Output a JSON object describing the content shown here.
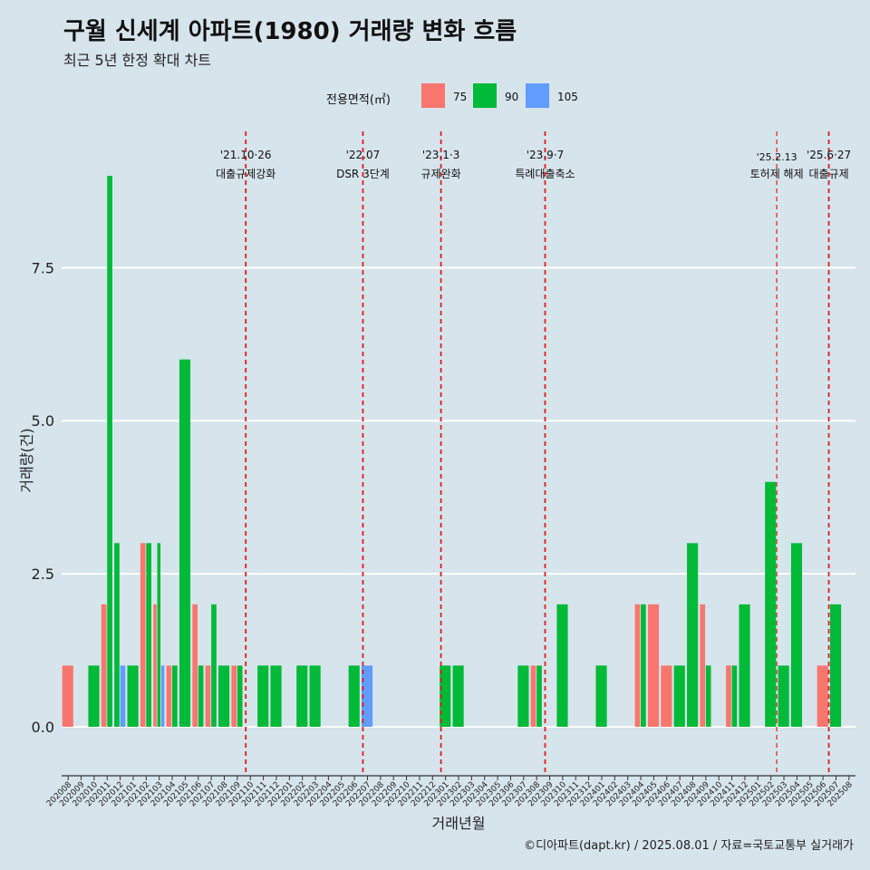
{
  "title": "구월 신세계 아파트(1980) 거래량 변화 흐름",
  "subtitle": "최근 5년 한정 확대 차트",
  "footer": "©디아파트(dapt.kr) / 2025.08.01 / 자료=국토교통부 실거래가",
  "legend": {
    "title": "전용면적(㎡)",
    "items": [
      {
        "label": "75",
        "color": "#F8766D"
      },
      {
        "label": "90",
        "color": "#00BA38"
      },
      {
        "label": "105",
        "color": "#619CFF"
      }
    ]
  },
  "chart_data": {
    "type": "bar",
    "xlabel": "거래년월",
    "ylabel": "거래량(건)",
    "ylim": [
      -0.8,
      9.8
    ],
    "yticks": [
      0.0,
      2.5,
      5.0,
      7.5
    ],
    "ytick_labels": [
      "0.0",
      "2.5",
      "5.0",
      "7.5"
    ],
    "grid": true,
    "legend_position": "top",
    "categories": [
      "202008",
      "202009",
      "202010",
      "202011",
      "202012",
      "202101",
      "202102",
      "202103",
      "202104",
      "202105",
      "202106",
      "202107",
      "202108",
      "202109",
      "202110",
      "202111",
      "202112",
      "202201",
      "202202",
      "202203",
      "202204",
      "202205",
      "202206",
      "202207",
      "202208",
      "202209",
      "202210",
      "202211",
      "202212",
      "202301",
      "202302",
      "202303",
      "202304",
      "202305",
      "202306",
      "202307",
      "202308",
      "202309",
      "202310",
      "202311",
      "202312",
      "202401",
      "202402",
      "202403",
      "202404",
      "202405",
      "202406",
      "202407",
      "202408",
      "202409",
      "202410",
      "202411",
      "202412",
      "202501",
      "202502",
      "202503",
      "202504",
      "202505",
      "202506",
      "202507",
      "202508"
    ],
    "series": [
      {
        "name": "75",
        "color": "#F8766D",
        "values": [
          1,
          0,
          0,
          2,
          0,
          0,
          3,
          2,
          1,
          0,
          2,
          1,
          0,
          1,
          0,
          0,
          0,
          0,
          0,
          0,
          0,
          0,
          0,
          0,
          0,
          0,
          0,
          0,
          0,
          0,
          0,
          0,
          0,
          0,
          0,
          0,
          1,
          0,
          0,
          0,
          0,
          0,
          0,
          0,
          2,
          2,
          1,
          0,
          0,
          2,
          0,
          1,
          0,
          0,
          0,
          0,
          0,
          0,
          1,
          0,
          0
        ]
      },
      {
        "name": "90",
        "color": "#00BA38",
        "values": [
          0,
          0,
          1,
          9,
          3,
          1,
          3,
          3,
          1,
          6,
          1,
          2,
          1,
          1,
          0,
          1,
          1,
          0,
          1,
          1,
          0,
          0,
          1,
          0,
          0,
          0,
          0,
          0,
          0,
          1,
          1,
          0,
          0,
          0,
          0,
          1,
          1,
          0,
          2,
          0,
          0,
          1,
          0,
          0,
          2,
          0,
          0,
          1,
          3,
          1,
          0,
          1,
          2,
          0,
          4,
          1,
          3,
          0,
          0,
          2,
          0
        ]
      },
      {
        "name": "105",
        "color": "#619CFF",
        "values": [
          0,
          0,
          0,
          0,
          1,
          0,
          0,
          1,
          0,
          0,
          0,
          0,
          0,
          0,
          0,
          0,
          0,
          0,
          0,
          0,
          0,
          0,
          0,
          1,
          0,
          0,
          0,
          0,
          0,
          0,
          0,
          0,
          0,
          0,
          0,
          0,
          0,
          0,
          0,
          0,
          0,
          0,
          0,
          0,
          0,
          0,
          0,
          0,
          0,
          0,
          0,
          0,
          0,
          0,
          0,
          0,
          0,
          0,
          0,
          0,
          0
        ]
      }
    ],
    "annotations": [
      {
        "x": 13.65,
        "date": "'21.10·26",
        "text": "대출규제강화"
      },
      {
        "x": 22.65,
        "date": "'22.07",
        "text": "DSR 3단계"
      },
      {
        "x": 28.65,
        "date": "'23.1·3",
        "text": "규제완화"
      },
      {
        "x": 36.65,
        "date": "'23.9·7",
        "text": "특례대출축소"
      },
      {
        "x": 54.45,
        "date": "'25.2.13",
        "text": "토허제 해제"
      },
      {
        "x": 58.45,
        "date": "'25.6·27",
        "text": "대출규제"
      }
    ]
  }
}
